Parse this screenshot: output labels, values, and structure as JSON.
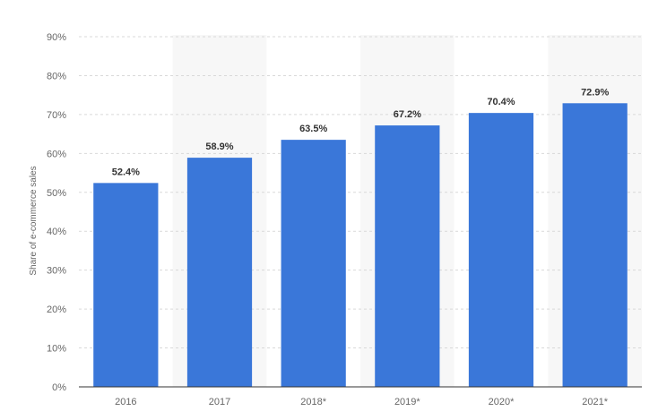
{
  "chart_data": {
    "type": "bar",
    "categories": [
      "2016",
      "2017",
      "2018*",
      "2019*",
      "2020*",
      "2021*"
    ],
    "values": [
      52.4,
      58.9,
      63.5,
      67.2,
      70.4,
      72.9
    ],
    "value_labels": [
      "52.4%",
      "58.9%",
      "63.5%",
      "67.2%",
      "70.4%",
      "72.9%"
    ],
    "title": "",
    "xlabel": "",
    "ylabel": "Share of e-commerce sales",
    "ylim": [
      0,
      90
    ],
    "y_ticks": [
      0,
      10,
      20,
      30,
      40,
      50,
      60,
      70,
      80,
      90
    ],
    "y_tick_labels": [
      "0%",
      "10%",
      "20%",
      "30%",
      "40%",
      "50%",
      "60%",
      "70%",
      "80%",
      "90%"
    ],
    "grid": true,
    "legend": "none",
    "colors": {
      "bar": "#3a77d9",
      "alternate_band": "#f7f7f7",
      "grid": "#d9d9d9",
      "axis": "#333333"
    }
  }
}
